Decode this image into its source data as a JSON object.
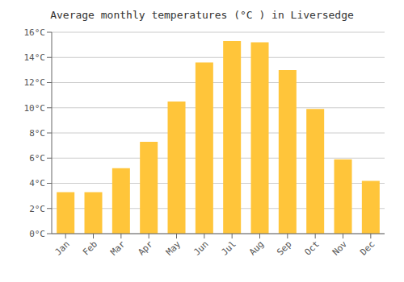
{
  "chart_data": {
    "type": "bar",
    "title": "Average monthly temperatures (°C ) in Liversedge",
    "categories": [
      "Jan",
      "Feb",
      "Mar",
      "Apr",
      "May",
      "Jun",
      "Jul",
      "Aug",
      "Sep",
      "Oct",
      "Nov",
      "Dec"
    ],
    "values": [
      3.3,
      3.3,
      5.2,
      7.3,
      10.5,
      13.6,
      15.3,
      15.2,
      13.0,
      9.9,
      5.9,
      4.2
    ],
    "color": "#FFC53A",
    "ylim": [
      0,
      16
    ],
    "yticks": [
      {
        "value": 0,
        "label": "0°C"
      },
      {
        "value": 2,
        "label": "2°C"
      },
      {
        "value": 4,
        "label": "4°C"
      },
      {
        "value": 6,
        "label": "6°C"
      },
      {
        "value": 8,
        "label": "8°C"
      },
      {
        "value": 10,
        "label": "10°C"
      },
      {
        "value": 12,
        "label": "12°C"
      },
      {
        "value": 14,
        "label": "14°C"
      },
      {
        "value": 16,
        "label": "16°C"
      }
    ],
    "grid": true
  }
}
